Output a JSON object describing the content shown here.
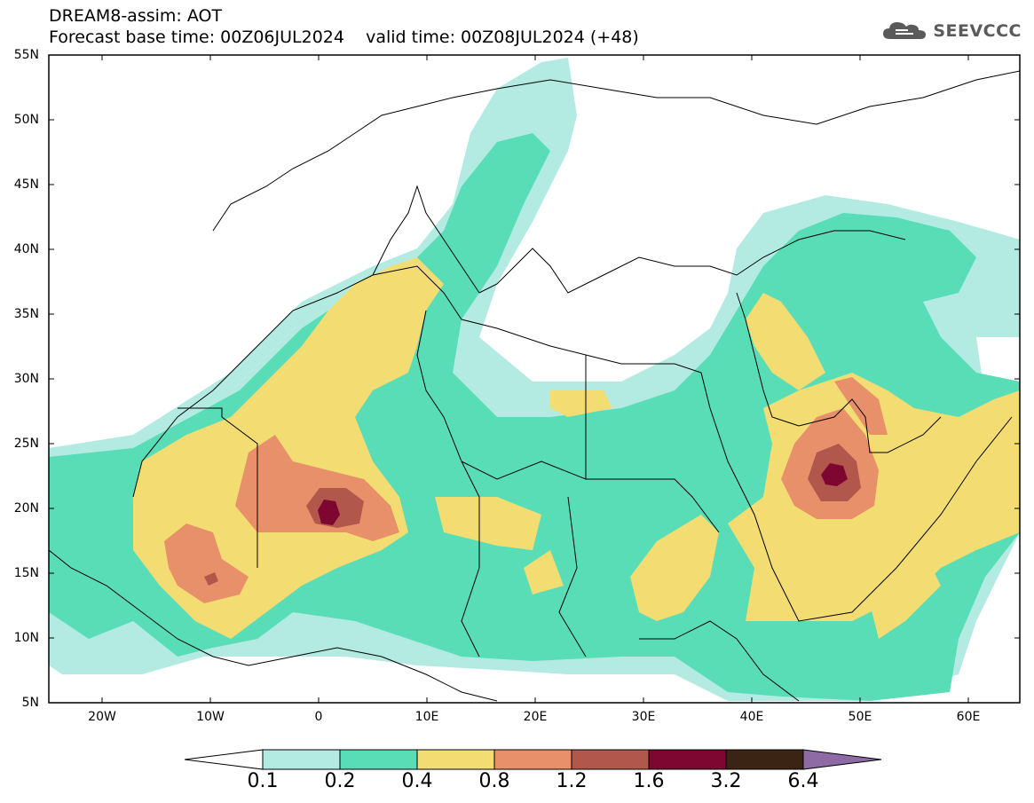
{
  "header": {
    "title_line1": "DREAM8-assim: AOT",
    "title_line2": "Forecast base time: 00Z06JUL2024    valid time: 00Z08JUL2024 (+48)"
  },
  "logo": {
    "icon": "cloud-icon",
    "text": "SEEVCCC",
    "color": "#5a5a5a"
  },
  "map": {
    "latitude_labels": [
      "55N",
      "50N",
      "45N",
      "40N",
      "35N",
      "30N",
      "25N",
      "20N",
      "15N",
      "10N",
      "5N"
    ],
    "longitude_labels": [
      "20W",
      "10W",
      "0",
      "10E",
      "20E",
      "30E",
      "40E",
      "50E",
      "60E"
    ],
    "extent": {
      "lon_min": -25,
      "lon_max": 65,
      "lat_min": 5,
      "lat_max": 55
    }
  },
  "legend": {
    "levels": [
      "0.1",
      "0.2",
      "0.4",
      "0.8",
      "1.2",
      "1.6",
      "3.2",
      "6.4"
    ],
    "colors": [
      "#ffffff",
      "#b3ebe3",
      "#58ddb7",
      "#f3dd73",
      "#e8906a",
      "#b2574b",
      "#7d0731",
      "#3b2413",
      "#8e6ba4"
    ]
  }
}
